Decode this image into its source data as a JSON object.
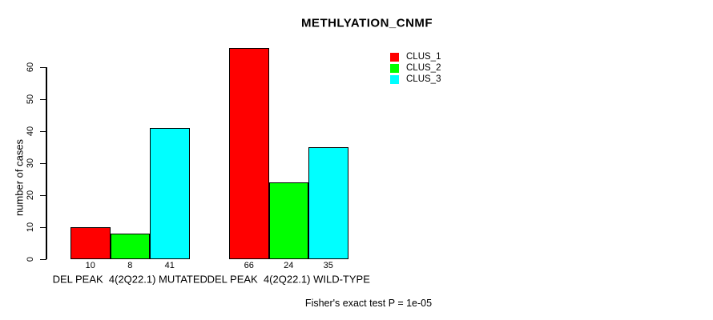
{
  "chart_data": {
    "type": "bar",
    "title": "METHLYATION_CNMF",
    "ylabel": "number of cases",
    "xlabel": "",
    "categories": [
      "DEL PEAK  4(2Q22.1) MUTATED",
      "DEL PEAK  4(2Q22.1) WILD-TYPE"
    ],
    "series": [
      {
        "name": "CLUS_1",
        "color": "#ff0000",
        "values": [
          10,
          66
        ]
      },
      {
        "name": "CLUS_2",
        "color": "#00ff00",
        "values": [
          8,
          24
        ]
      },
      {
        "name": "CLUS_3",
        "color": "#00ffff",
        "values": [
          41,
          35
        ]
      }
    ],
    "bar_value_labels": [
      [
        10,
        8,
        41
      ],
      [
        66,
        24,
        35
      ]
    ],
    "yticks": [
      0,
      10,
      20,
      30,
      40,
      50,
      60
    ],
    "ylim": [
      0,
      66
    ],
    "grid": false,
    "legend_position": "top-right",
    "annotation": "Fisher's exact test P = 1e-05"
  }
}
